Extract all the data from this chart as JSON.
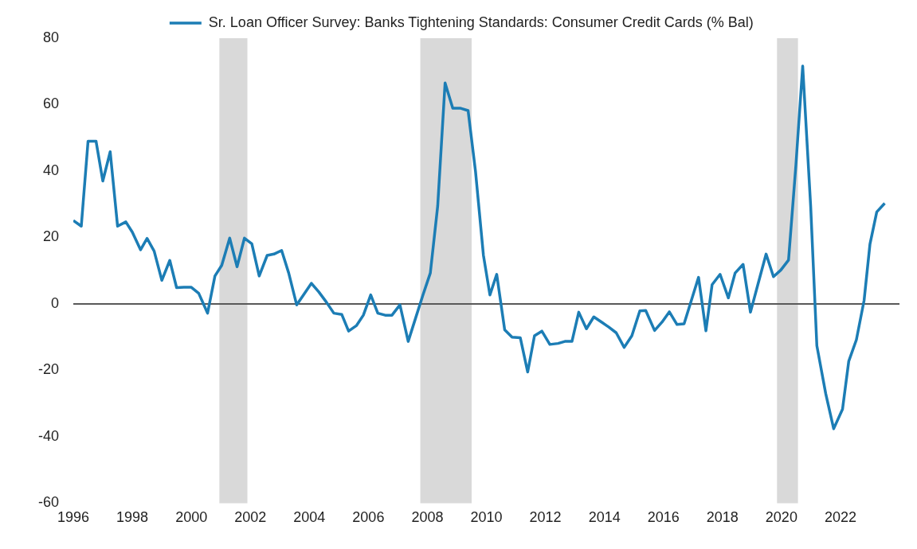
{
  "chart_data": {
    "type": "line",
    "xlim": [
      1996,
      2024
    ],
    "xticks": [
      1996,
      1998,
      2000,
      2002,
      2004,
      2006,
      2008,
      2010,
      2012,
      2014,
      2016,
      2018,
      2020,
      2022
    ],
    "ylim": [
      -60,
      80
    ],
    "yticks": [
      -60,
      -40,
      -20,
      0,
      20,
      40,
      60,
      80
    ],
    "grid": false,
    "legend": "top",
    "marker": "none",
    "line_style": "solid",
    "ref_lines": [
      {
        "axis": "y",
        "value": 0,
        "color": "#595959"
      }
    ],
    "bands": [
      {
        "axis": "x",
        "from": 2000.95,
        "to": 2001.9,
        "color": "#d9d9d9"
      },
      {
        "axis": "x",
        "from": 2007.76,
        "to": 2009.5,
        "color": "#d9d9d9"
      },
      {
        "axis": "x",
        "from": 2019.85,
        "to": 2020.56,
        "color": "#d9d9d9"
      }
    ],
    "series": [
      {
        "name": "Sr. Loan Officer Survey: Banks Tightening Standards: Consumer Credit Cards (% Bal)",
        "color": "#1c7db5",
        "x": [
          1996.0,
          1996.27,
          1996.5,
          1996.77,
          1997.0,
          1997.25,
          1997.5,
          1997.78,
          1998.0,
          1998.28,
          1998.5,
          1998.74,
          1999.0,
          1999.27,
          1999.5,
          1999.75,
          2000.0,
          2000.25,
          2000.55,
          2000.8,
          2001.03,
          2001.3,
          2001.55,
          2001.8,
          2002.05,
          2002.3,
          2002.57,
          2002.8,
          2003.06,
          2003.3,
          2003.57,
          2003.8,
          2004.07,
          2004.32,
          2004.58,
          2004.83,
          2005.1,
          2005.33,
          2005.6,
          2005.83,
          2006.08,
          2006.32,
          2006.57,
          2006.8,
          2007.07,
          2007.35,
          2007.6,
          2007.85,
          2008.1,
          2008.35,
          2008.6,
          2008.86,
          2009.13,
          2009.38,
          2009.63,
          2009.9,
          2010.12,
          2010.35,
          2010.62,
          2010.87,
          2011.15,
          2011.4,
          2011.63,
          2011.88,
          2012.15,
          2012.43,
          2012.66,
          2012.9,
          2013.13,
          2013.39,
          2013.64,
          2013.92,
          2014.15,
          2014.4,
          2014.67,
          2014.93,
          2015.2,
          2015.4,
          2015.7,
          2015.95,
          2016.2,
          2016.46,
          2016.7,
          2017.19,
          2017.44,
          2017.65,
          2017.92,
          2018.2,
          2018.43,
          2018.7,
          2018.95,
          2019.2,
          2019.48,
          2019.73,
          2019.98,
          2020.24,
          2020.49,
          2020.72,
          2020.99,
          2021.2,
          2021.5,
          2021.77,
          2022.07,
          2022.28,
          2022.54,
          2022.8,
          2023.0,
          2023.23,
          2023.5
        ],
        "values": [
          25.1,
          23.4,
          49,
          49,
          37,
          45.8,
          23.4,
          24.7,
          21.6,
          16.3,
          19.7,
          15.9,
          7.1,
          13.1,
          4.9,
          5,
          5,
          3.2,
          -2.8,
          8.4,
          11.6,
          19.8,
          11.2,
          19.8,
          18.1,
          8.4,
          14.6,
          15,
          16.1,
          9.3,
          -0.3,
          2.7,
          6.2,
          3.6,
          0.5,
          -2.8,
          -3.2,
          -8.2,
          -6.5,
          -3.4,
          2.7,
          -2.8,
          -3.4,
          -3.4,
          -0.3,
          -11.3,
          -4.3,
          2.7,
          9.3,
          29.5,
          66.5,
          58.9,
          58.9,
          58.2,
          40,
          14.6,
          2.7,
          8.9,
          -7.8,
          -10,
          -10.2,
          -20.5,
          -9.6,
          -8.2,
          -12.2,
          -11.9,
          -11.3,
          -11.3,
          -2.5,
          -7.5,
          -3.9,
          -5.6,
          -7,
          -8.7,
          -13.1,
          -9.6,
          -2.1,
          -2,
          -8,
          -5.5,
          -2.4,
          -6.2,
          -6,
          8,
          -8.1,
          5.8,
          8.9,
          1.8,
          9.3,
          11.9,
          -2.5,
          5.8,
          15,
          8.2,
          10.2,
          13.2,
          41.8,
          71.6,
          29.5,
          -12.6,
          -27,
          -37.6,
          -31.7,
          -17.3,
          -10.8,
          1,
          18,
          27.7,
          30.3
        ]
      }
    ]
  }
}
